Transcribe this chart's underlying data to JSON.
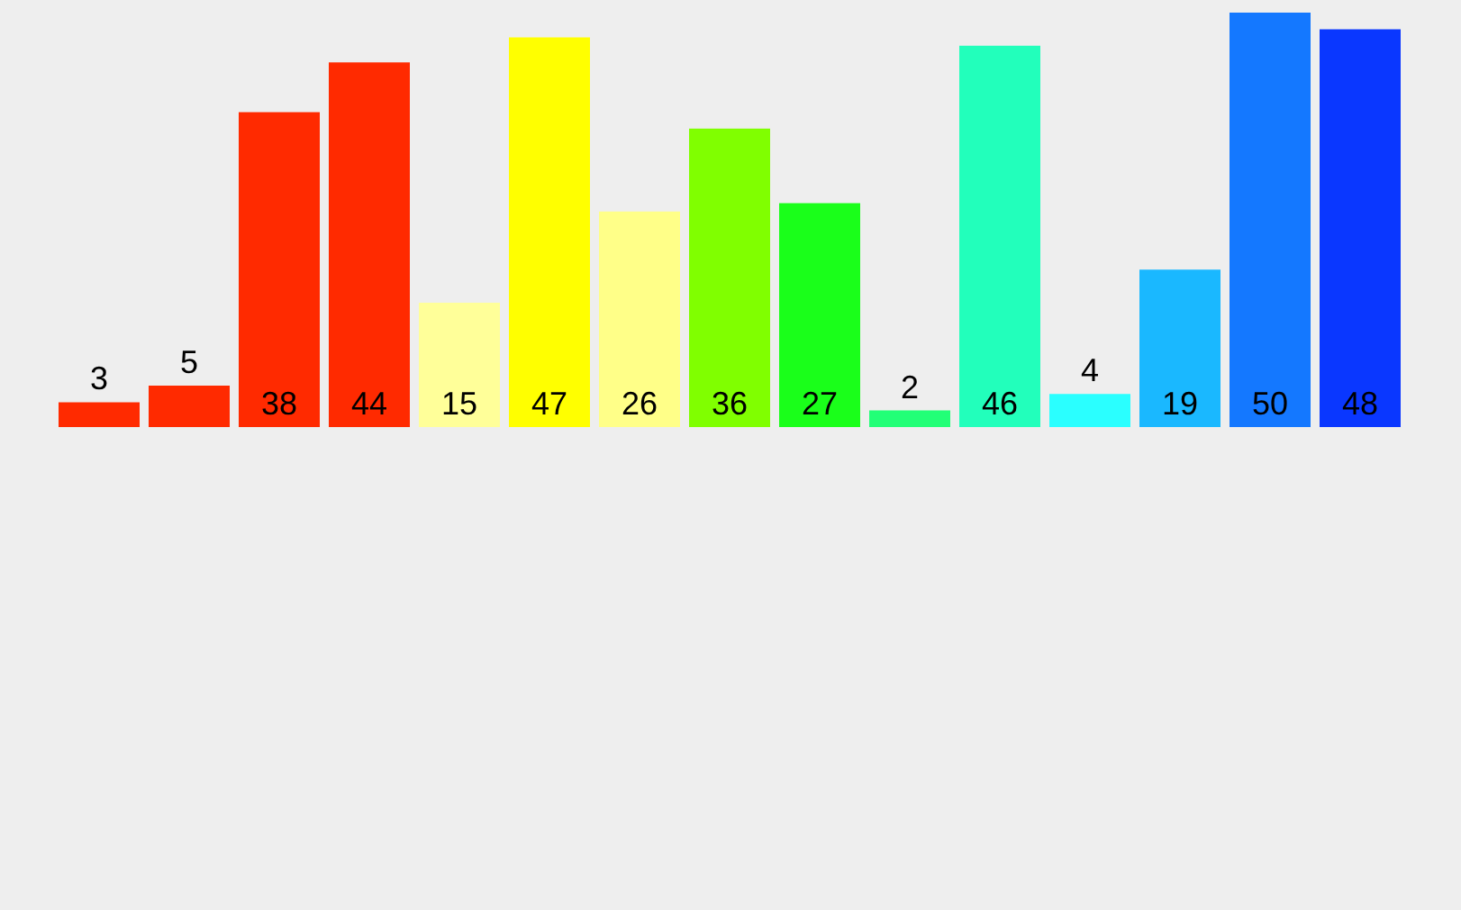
{
  "chart_data": {
    "type": "bar",
    "data_labels": true,
    "categories": [
      null,
      null,
      null,
      null,
      null,
      null,
      null,
      null,
      null,
      null,
      null,
      null,
      null,
      null,
      null
    ],
    "values": [
      3,
      5,
      38,
      44,
      15,
      47,
      26,
      36,
      27,
      2,
      46,
      4,
      19,
      50,
      48
    ],
    "colors": [
      "#ff2a00",
      "#ff2a00",
      "#ff2a00",
      "#ff2a00",
      "#ffff99",
      "#ffff00",
      "#ffff88",
      "#80ff00",
      "#1aff1a",
      "#22ff77",
      "#22ffbb",
      "#2affff",
      "#1ab8ff",
      "#1478ff",
      "#0a37ff"
    ]
  }
}
